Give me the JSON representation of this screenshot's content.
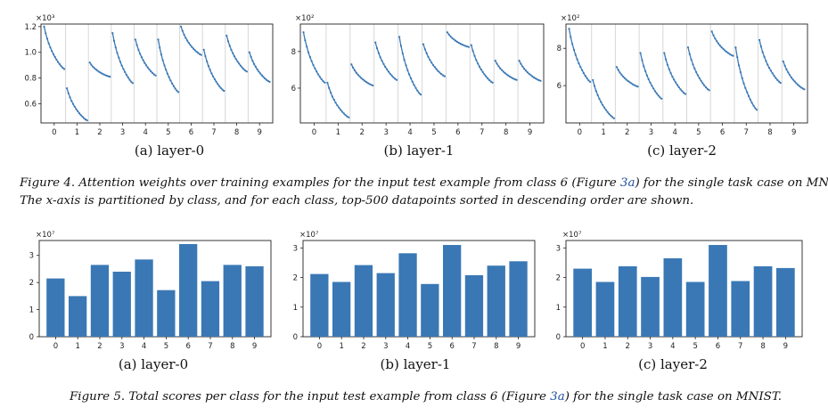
{
  "figure4": {
    "panels": [
      {
        "caption": "(a) layer-0",
        "yexp": "×10³",
        "ytick_labels": [
          "0.6",
          "0.8",
          "1.0",
          "1.2"
        ]
      },
      {
        "caption": "(b) layer-1",
        "yexp": "×10²",
        "ytick_labels": [
          "6",
          "8"
        ]
      },
      {
        "caption": "(c) layer-2",
        "yexp": "×10²",
        "ytick_labels": [
          "6",
          "8"
        ]
      }
    ],
    "caption_label": "Figure 4.",
    "caption_l1_a": "Attention weights over training examples for the input test example from class 6 (Figure ",
    "caption_ref": "3a",
    "caption_l1_b": ") for the single task case on MNIST.",
    "caption_l2": "The x-axis is partitioned by class, and for each class, top-500 datapoints sorted in descending order are shown."
  },
  "figure5": {
    "panels": [
      {
        "caption": "(a) layer-0",
        "yexp": "×10⁷"
      },
      {
        "caption": "(b) layer-1",
        "yexp": "×10⁷"
      },
      {
        "caption": "(c) layer-2",
        "yexp": "×10⁷"
      }
    ],
    "caption_label": "Figure 5.",
    "caption_a": "Total scores per class for the input test example from class 6 (Figure ",
    "caption_ref": "3a",
    "caption_b": ") for the single task case on MNIST."
  },
  "colors": {
    "series": "#3a78b5",
    "grid": "#d7d7d7"
  },
  "chart_data": [
    {
      "type": "line",
      "title": "(a) layer-0",
      "x": [
        "0",
        "1",
        "2",
        "3",
        "4",
        "5",
        "6",
        "7",
        "8",
        "9"
      ],
      "ylim": [
        0.45,
        1.22
      ],
      "series": [
        {
          "values": [
            {
              "class": "0",
              "start": 1.2,
              "end": 0.87
            },
            {
              "class": "1",
              "start": 0.72,
              "end": 0.47
            },
            {
              "class": "2",
              "start": 0.92,
              "end": 0.81
            },
            {
              "class": "3",
              "start": 1.15,
              "end": 0.76
            },
            {
              "class": "4",
              "start": 1.1,
              "end": 0.82
            },
            {
              "class": "5",
              "start": 1.1,
              "end": 0.69
            },
            {
              "class": "6",
              "start": 1.2,
              "end": 0.98
            },
            {
              "class": "7",
              "start": 1.02,
              "end": 0.7
            },
            {
              "class": "8",
              "start": 1.13,
              "end": 0.85
            },
            {
              "class": "9",
              "start": 1.0,
              "end": 0.77
            }
          ]
        }
      ]
    },
    {
      "type": "line",
      "title": "(b) layer-1",
      "x": [
        "0",
        "1",
        "2",
        "3",
        "4",
        "5",
        "6",
        "7",
        "8",
        "9"
      ],
      "ylim": [
        4.1,
        9.5
      ],
      "series": [
        {
          "values": [
            {
              "class": "0",
              "start": 9.05,
              "end": 6.3
            },
            {
              "class": "1",
              "start": 6.3,
              "end": 4.4
            },
            {
              "class": "2",
              "start": 7.3,
              "end": 6.15
            },
            {
              "class": "3",
              "start": 8.5,
              "end": 6.45
            },
            {
              "class": "4",
              "start": 8.8,
              "end": 5.65
            },
            {
              "class": "5",
              "start": 8.4,
              "end": 6.65
            },
            {
              "class": "6",
              "start": 9.05,
              "end": 8.25
            },
            {
              "class": "7",
              "start": 8.35,
              "end": 6.3
            },
            {
              "class": "8",
              "start": 7.5,
              "end": 6.45
            },
            {
              "class": "9",
              "start": 7.5,
              "end": 6.4
            }
          ]
        }
      ]
    },
    {
      "type": "line",
      "title": "(c) layer-2",
      "x": [
        "0",
        "1",
        "2",
        "3",
        "4",
        "5",
        "6",
        "7",
        "8",
        "9"
      ],
      "ylim": [
        4.0,
        9.3
      ],
      "series": [
        {
          "values": [
            {
              "class": "0",
              "start": 9.05,
              "end": 6.2
            },
            {
              "class": "1",
              "start": 6.3,
              "end": 4.25
            },
            {
              "class": "2",
              "start": 7.0,
              "end": 5.95
            },
            {
              "class": "3",
              "start": 7.75,
              "end": 5.3
            },
            {
              "class": "4",
              "start": 7.75,
              "end": 5.55
            },
            {
              "class": "5",
              "start": 8.05,
              "end": 5.75
            },
            {
              "class": "6",
              "start": 8.9,
              "end": 7.6
            },
            {
              "class": "7",
              "start": 8.05,
              "end": 4.7
            },
            {
              "class": "8",
              "start": 8.45,
              "end": 6.15
            },
            {
              "class": "9",
              "start": 7.3,
              "end": 5.8
            }
          ]
        }
      ]
    },
    {
      "type": "bar",
      "title": "(a) layer-0",
      "categories": [
        "0",
        "1",
        "2",
        "3",
        "4",
        "5",
        "6",
        "7",
        "8",
        "9"
      ],
      "values": [
        2.15,
        1.5,
        2.65,
        2.4,
        2.85,
        1.72,
        3.42,
        2.05,
        2.65,
        2.6
      ],
      "ylim": [
        0,
        3.55
      ],
      "yticks": [
        "0",
        "1",
        "2",
        "3"
      ]
    },
    {
      "type": "bar",
      "title": "(b) layer-1",
      "categories": [
        "0",
        "1",
        "2",
        "3",
        "4",
        "5",
        "6",
        "7",
        "8",
        "9"
      ],
      "values": [
        2.12,
        1.85,
        2.42,
        2.15,
        2.82,
        1.78,
        3.1,
        2.08,
        2.4,
        2.55
      ],
      "ylim": [
        0,
        3.25
      ],
      "yticks": [
        "0",
        "1",
        "2",
        "3"
      ]
    },
    {
      "type": "bar",
      "title": "(c) layer-2",
      "categories": [
        "0",
        "1",
        "2",
        "3",
        "4",
        "5",
        "6",
        "7",
        "8",
        "9"
      ],
      "values": [
        2.3,
        1.85,
        2.38,
        2.02,
        2.65,
        1.85,
        3.1,
        1.88,
        2.38,
        2.32
      ],
      "ylim": [
        0,
        3.25
      ],
      "yticks": [
        "0",
        "1",
        "2",
        "3"
      ]
    }
  ]
}
